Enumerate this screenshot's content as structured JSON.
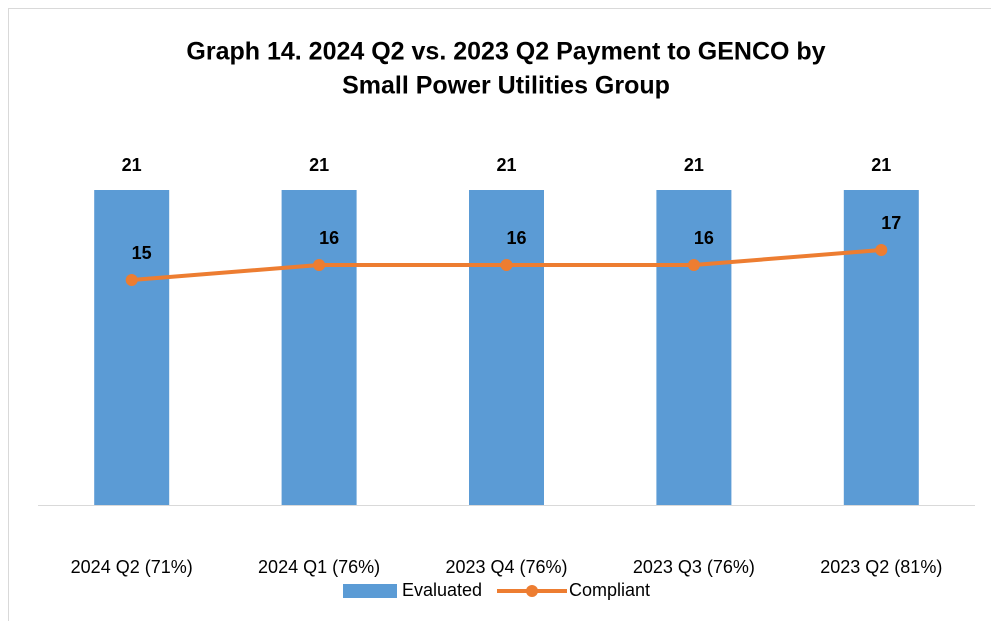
{
  "chart_data": {
    "type": "bar",
    "title": [
      "Graph 14. 2024 Q2 vs. 2023 Q2 Payment to GENCO by",
      "Small Power Utilities Group"
    ],
    "categories": [
      "2024 Q2 (71%)",
      "2024 Q1 (76%)",
      "2023 Q4 (76%)",
      "2023 Q3 (76%)",
      "2023 Q2 (81%)"
    ],
    "series": [
      {
        "name": "Evaluated",
        "type": "bar",
        "color": "#5b9bd5",
        "values": [
          21,
          21,
          21,
          21,
          21
        ]
      },
      {
        "name": "Compliant",
        "type": "line",
        "color": "#ed7d31",
        "values": [
          15,
          16,
          16,
          16,
          17
        ]
      }
    ],
    "ylim": [
      0,
      25
    ],
    "grid": false,
    "legend": "bottom"
  }
}
